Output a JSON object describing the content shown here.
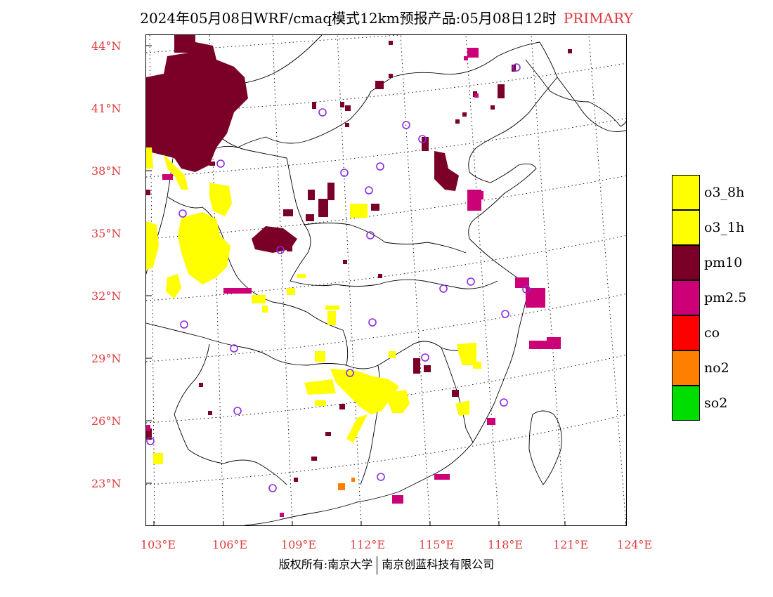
{
  "title": {
    "main": "2024年05月08日WRF/cmaq模式12km预报产品:05月08日12时",
    "tag": "PRIMARY",
    "tag_color": "#e03a3a"
  },
  "axes": {
    "lat_labels": [
      "44°N",
      "41°N",
      "38°N",
      "35°N",
      "32°N",
      "29°N",
      "26°N",
      "23°N"
    ],
    "lon_labels": [
      "103°E",
      "106°E",
      "109°E",
      "112°E",
      "115°E",
      "118°E",
      "121°E",
      "124°E"
    ],
    "label_color": "#e03a3a"
  },
  "legend": {
    "items": [
      {
        "label": "o3_8h",
        "color": "#ffff00"
      },
      {
        "label": "o3_1h",
        "color": "#ffff00"
      },
      {
        "label": "pm10",
        "color": "#7a0028"
      },
      {
        "label": "pm2.5",
        "color": "#cc0077"
      },
      {
        "label": "co",
        "color": "#ff0000"
      },
      {
        "label": "no2",
        "color": "#ff7f00"
      },
      {
        "label": "so2",
        "color": "#00dd00"
      }
    ]
  },
  "footer": {
    "left": "版权所有:南京大学",
    "right": "南京创蓝科技有限公司"
  },
  "colors": {
    "pm10": "#7a0028",
    "pm25": "#cc0077",
    "o3": "#ffff00",
    "no2": "#ff7f00",
    "station_circle": "#8a2be2"
  }
}
